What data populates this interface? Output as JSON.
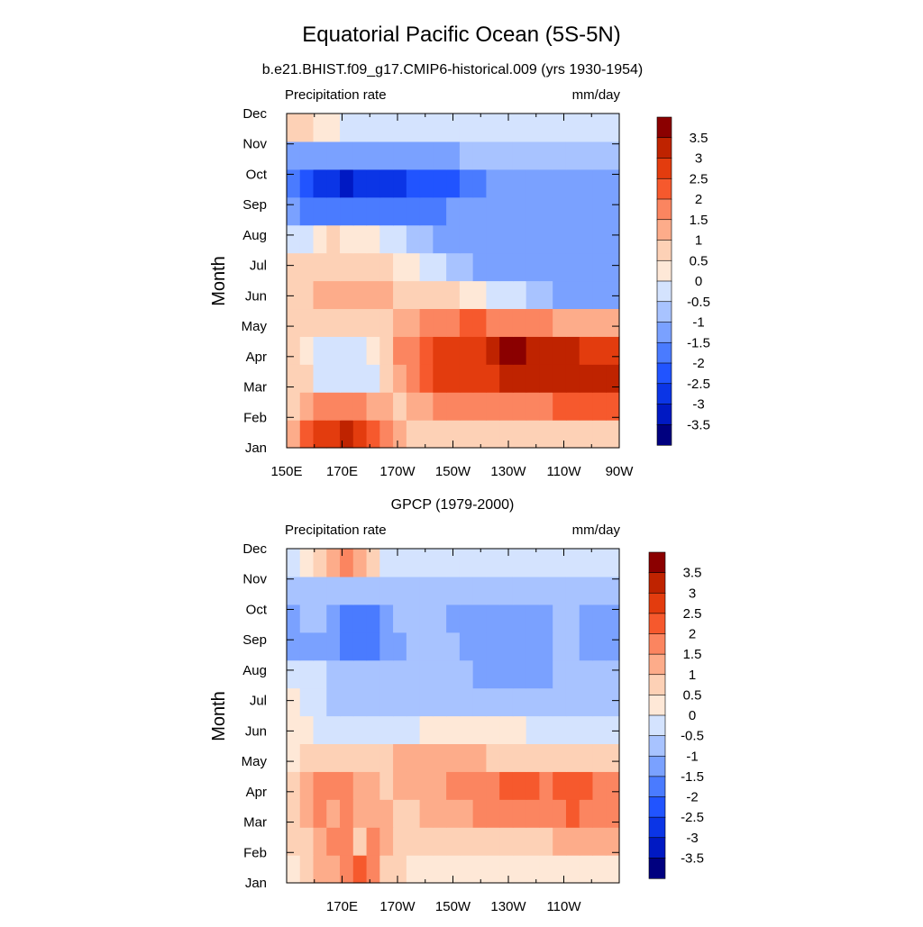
{
  "figure": {
    "title": "Equatorial Pacific Ocean (5S-5N)"
  },
  "chart_data": [
    {
      "type": "heatmap",
      "subtitle": "b.e21.BHIST.f09_g17.CMIP6-historical.009 (yrs 1930-1954)",
      "left_label": "Precipitation rate",
      "right_label": "mm/day",
      "ylabel": "Month",
      "x_ticks": [
        "150E",
        "170E",
        "170W",
        "150W",
        "130W",
        "110W",
        "90W"
      ],
      "y_ticks": [
        "Jan",
        "Feb",
        "Mar",
        "Apr",
        "May",
        "Jun",
        "Jul",
        "Aug",
        "Sep",
        "Oct",
        "Nov",
        "Dec"
      ],
      "x_columns": [
        "150E",
        "155E",
        "160E",
        "165E",
        "170E",
        "175E",
        "180",
        "175W",
        "170W",
        "165W",
        "160W",
        "155W",
        "150W",
        "145W",
        "140W",
        "135W",
        "130W",
        "125W",
        "120W",
        "115W",
        "110W",
        "105W",
        "100W",
        "95W",
        "90W"
      ],
      "colorbar_labels": [
        "3.5",
        "3",
        "2.5",
        "2",
        "1.5",
        "1",
        "0.5",
        "0",
        "-0.5",
        "-1",
        "-1.5",
        "-2",
        "-2.5",
        "-3",
        "-3.5"
      ],
      "values": [
        [
          1.0,
          2.0,
          2.5,
          2.7,
          3.0,
          2.8,
          2.2,
          1.7,
          1.2,
          0.8,
          0.6,
          0.5,
          0.5,
          0.5,
          0.5,
          0.5,
          0.5,
          0.5,
          0.5,
          0.5,
          0.5,
          0.5,
          0.5,
          0.5,
          0.5
        ],
        [
          0.8,
          1.2,
          1.5,
          1.5,
          1.5,
          1.5,
          1.2,
          1.0,
          0.9,
          1.0,
          1.2,
          1.5,
          1.5,
          1.5,
          1.5,
          1.5,
          1.5,
          1.8,
          1.8,
          1.8,
          2.0,
          2.2,
          2.2,
          2.2,
          2.2
        ],
        [
          0.8,
          0.5,
          -0.3,
          -0.3,
          -0.3,
          -0.3,
          -0.2,
          0.7,
          1.2,
          1.5,
          2.0,
          2.5,
          2.5,
          2.8,
          2.8,
          2.9,
          3.0,
          3.0,
          3.0,
          3.0,
          3.0,
          3.0,
          3.0,
          3.0,
          3.0
        ],
        [
          0.8,
          0.3,
          -0.3,
          -0.3,
          -0.3,
          -0.3,
          0.2,
          0.8,
          1.5,
          1.8,
          2.0,
          2.5,
          2.5,
          2.8,
          2.9,
          3.3,
          3.6,
          3.6,
          3.3,
          3.0,
          3.0,
          3.0,
          2.7,
          2.5,
          2.5
        ],
        [
          0.8,
          0.8,
          0.8,
          0.8,
          0.8,
          0.8,
          0.8,
          0.8,
          1.0,
          1.2,
          1.5,
          1.8,
          1.8,
          2.0,
          2.0,
          1.8,
          1.8,
          1.5,
          1.5,
          1.5,
          1.2,
          1.2,
          1.2,
          1.0,
          1.0
        ],
        [
          0.8,
          0.8,
          1.0,
          1.0,
          1.0,
          1.2,
          1.2,
          1.0,
          0.8,
          0.5,
          0.5,
          0.5,
          0.5,
          0.2,
          0.0,
          -0.2,
          -0.5,
          -0.5,
          -0.8,
          -1.0,
          -1.2,
          -1.2,
          -1.5,
          -1.5,
          -1.5
        ],
        [
          0.8,
          0.8,
          0.8,
          0.8,
          0.8,
          0.8,
          0.8,
          0.5,
          0.3,
          0.0,
          -0.3,
          -0.5,
          -0.8,
          -1.0,
          -1.2,
          -1.3,
          -1.5,
          -1.5,
          -1.5,
          -1.5,
          -1.5,
          -1.5,
          -1.5,
          -1.5,
          -1.5
        ],
        [
          -0.5,
          -0.2,
          0.3,
          0.5,
          0.3,
          0.2,
          0.0,
          -0.2,
          -0.5,
          -0.8,
          -1.0,
          -1.2,
          -1.3,
          -1.5,
          -1.5,
          -1.5,
          -1.5,
          -1.5,
          -1.5,
          -1.5,
          -1.5,
          -1.5,
          -1.5,
          -1.5,
          -1.5
        ],
        [
          -1.3,
          -1.8,
          -2.0,
          -2.0,
          -2.0,
          -1.8,
          -1.8,
          -1.8,
          -1.7,
          -1.7,
          -1.6,
          -1.6,
          -1.5,
          -1.5,
          -1.5,
          -1.5,
          -1.5,
          -1.5,
          -1.5,
          -1.5,
          -1.5,
          -1.5,
          -1.5,
          -1.5,
          -1.5
        ],
        [
          -1.8,
          -2.3,
          -2.6,
          -2.8,
          -3.1,
          -2.8,
          -2.6,
          -2.6,
          -2.6,
          -2.4,
          -2.3,
          -2.2,
          -2.1,
          -2.0,
          -1.8,
          -1.5,
          -1.5,
          -1.5,
          -1.5,
          -1.5,
          -1.5,
          -1.5,
          -1.5,
          -1.5,
          -1.4
        ],
        [
          -1.5,
          -1.5,
          -1.5,
          -1.5,
          -1.5,
          -1.5,
          -1.5,
          -1.5,
          -1.3,
          -1.2,
          -1.1,
          -1.1,
          -1.1,
          -1.0,
          -1.0,
          -1.0,
          -1.0,
          -1.0,
          -1.0,
          -1.0,
          -1.0,
          -1.0,
          -1.0,
          -1.0,
          -1.0
        ],
        [
          0.5,
          0.5,
          0.2,
          0.0,
          -0.2,
          -0.2,
          -0.2,
          -0.3,
          -0.4,
          -0.4,
          -0.4,
          -0.4,
          -0.4,
          -0.4,
          -0.4,
          -0.3,
          -0.3,
          -0.3,
          -0.3,
          -0.3,
          -0.3,
          -0.2,
          -0.2,
          -0.2,
          -0.2
        ]
      ]
    },
    {
      "type": "heatmap",
      "subtitle": "GPCP (1979-2000)",
      "left_label": "Precipitation rate",
      "right_label": "mm/day",
      "ylabel": "Month",
      "x_ticks": [
        "170E",
        "170W",
        "150W",
        "130W",
        "110W"
      ],
      "y_ticks": [
        "Jan",
        "Feb",
        "Mar",
        "Apr",
        "May",
        "Jun",
        "Jul",
        "Aug",
        "Sep",
        "Oct",
        "Nov",
        "Dec"
      ],
      "x_columns": [
        "150E",
        "155E",
        "160E",
        "165E",
        "170E",
        "175E",
        "180",
        "175W",
        "170W",
        "165W",
        "160W",
        "155W",
        "150W",
        "145W",
        "140W",
        "135W",
        "130W",
        "125W",
        "120W",
        "115W",
        "110W",
        "105W",
        "100W",
        "95W",
        "90W"
      ],
      "colorbar_labels": [
        "3.5",
        "3",
        "2.5",
        "2",
        "1.5",
        "1",
        "0.5",
        "0",
        "-0.5",
        "-1",
        "-1.5",
        "-2",
        "-2.5",
        "-3",
        "-3.5"
      ],
      "values": [
        [
          0.3,
          0.5,
          1.0,
          1.2,
          1.5,
          2.0,
          1.5,
          0.8,
          0.5,
          0.4,
          0.4,
          0.3,
          0.3,
          0.3,
          0.3,
          0.3,
          0.3,
          0.2,
          0.2,
          0.2,
          0.2,
          0.2,
          0.2,
          0.2,
          0.2
        ],
        [
          0.5,
          0.8,
          1.2,
          1.5,
          1.5,
          0.8,
          1.5,
          1.2,
          0.8,
          0.6,
          0.5,
          0.5,
          0.5,
          0.5,
          0.5,
          0.6,
          0.7,
          0.8,
          0.8,
          0.9,
          1.0,
          1.0,
          1.0,
          1.0,
          1.0
        ],
        [
          0.5,
          1.0,
          1.5,
          1.0,
          1.5,
          1.2,
          1.2,
          1.0,
          0.8,
          0.8,
          1.0,
          1.2,
          1.3,
          1.4,
          1.5,
          1.6,
          1.8,
          1.8,
          1.6,
          1.5,
          1.8,
          2.0,
          1.8,
          1.6,
          1.5
        ],
        [
          0.5,
          1.0,
          1.5,
          1.5,
          1.5,
          1.3,
          1.0,
          0.8,
          1.0,
          1.2,
          1.2,
          1.0,
          1.5,
          1.5,
          1.6,
          1.8,
          2.0,
          2.1,
          2.1,
          1.8,
          2.0,
          2.1,
          2.1,
          1.8,
          1.5
        ],
        [
          0.3,
          0.5,
          0.8,
          0.8,
          0.8,
          0.8,
          0.8,
          0.8,
          1.0,
          1.0,
          1.0,
          1.0,
          1.0,
          1.0,
          1.0,
          0.8,
          0.8,
          0.8,
          0.8,
          0.8,
          0.8,
          0.8,
          0.8,
          0.8,
          0.8
        ],
        [
          0.3,
          0.0,
          -0.2,
          -0.2,
          -0.5,
          -0.5,
          -0.5,
          -0.3,
          -0.3,
          -0.3,
          0.0,
          0.1,
          0.2,
          0.2,
          0.2,
          0.1,
          0.0,
          0.0,
          -0.2,
          -0.3,
          -0.4,
          -0.5,
          -0.5,
          -0.5,
          -0.5
        ],
        [
          0.3,
          -0.3,
          -0.5,
          -0.7,
          -0.7,
          -0.7,
          -0.7,
          -0.7,
          -0.7,
          -0.7,
          -0.7,
          -0.7,
          -0.7,
          -0.7,
          -0.7,
          -0.7,
          -0.7,
          -0.7,
          -0.7,
          -0.7,
          -0.7,
          -0.7,
          -0.7,
          -0.7,
          -0.7
        ],
        [
          -0.5,
          -0.5,
          -0.5,
          -0.6,
          -0.7,
          -0.8,
          -0.8,
          -0.8,
          -0.8,
          -0.8,
          -0.8,
          -0.8,
          -0.8,
          -0.9,
          -1.1,
          -1.2,
          -1.2,
          -1.2,
          -1.2,
          -1.1,
          -0.9,
          -0.8,
          -0.8,
          -0.8,
          -0.8
        ],
        [
          -1.5,
          -1.2,
          -1.2,
          -1.3,
          -1.6,
          -1.8,
          -1.6,
          -1.2,
          -1.1,
          -1.0,
          -1.0,
          -1.0,
          -1.0,
          -1.2,
          -1.3,
          -1.3,
          -1.4,
          -1.4,
          -1.4,
          -1.3,
          -1.0,
          -0.9,
          -1.1,
          -1.2,
          -1.2
        ],
        [
          -1.2,
          -1.0,
          -1.0,
          -1.3,
          -1.6,
          -1.8,
          -1.8,
          -1.2,
          -1.0,
          -1.0,
          -1.0,
          -1.0,
          -1.1,
          -1.3,
          -1.3,
          -1.3,
          -1.3,
          -1.3,
          -1.3,
          -1.2,
          -1.0,
          -0.9,
          -1.1,
          -1.2,
          -1.2
        ],
        [
          -0.6,
          -0.7,
          -0.8,
          -0.8,
          -1.0,
          -1.0,
          -1.0,
          -0.9,
          -0.9,
          -0.8,
          -0.8,
          -0.8,
          -0.8,
          -0.8,
          -0.8,
          -0.7,
          -0.7,
          -0.7,
          -0.7,
          -0.7,
          -0.7,
          -0.7,
          -0.7,
          -0.7,
          -0.7
        ],
        [
          -0.3,
          0.3,
          0.8,
          1.2,
          1.8,
          1.2,
          0.5,
          -0.2,
          -0.3,
          -0.4,
          -0.4,
          -0.4,
          -0.4,
          -0.4,
          -0.4,
          -0.3,
          -0.3,
          -0.3,
          -0.3,
          -0.3,
          -0.3,
          -0.3,
          -0.3,
          -0.3,
          -0.3
        ]
      ]
    }
  ],
  "colorbar": {
    "levels": [
      -3.5,
      -3,
      -2.5,
      -2,
      -1.5,
      -1,
      -0.5,
      0,
      0.5,
      1,
      1.5,
      2,
      2.5,
      3,
      3.5
    ],
    "colors": [
      "#00007f",
      "#0019c3",
      "#0b35e6",
      "#2154ff",
      "#4a7bff",
      "#7aa1ff",
      "#a8c3ff",
      "#d4e3fe",
      "#fee8d7",
      "#fdd1b6",
      "#fdac8a",
      "#fb8560",
      "#f6592d",
      "#e33c0e",
      "#bf2300",
      "#8b0000"
    ]
  }
}
